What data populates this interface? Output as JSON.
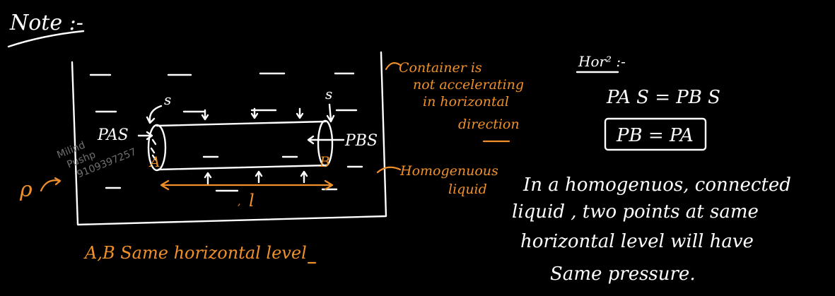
{
  "note_title": "Note :-",
  "liquid_symbol": "ρ",
  "cylinder": {
    "area_left": "s",
    "area_right": "s",
    "left_label": "A",
    "right_label": "B",
    "force_left": "PAS",
    "force_right": "PBS",
    "length": "l"
  },
  "container_note": [
    "Container is",
    "not accelerating",
    "in horizontal",
    "direction"
  ],
  "liquid_note": [
    "Homogenuous",
    "liquid"
  ],
  "bottom_caption": "A,B Same horizontal level",
  "hor_heading": "Hor² :-",
  "equation_1": "PA S = PB S",
  "equation_2": "PB = PA",
  "statement": [
    "In a homogenuos, connected",
    "liquid , two points at same",
    "horizontal level will have",
    "Same pressure."
  ],
  "watermark": [
    "Milind",
    "Pushp",
    "9109397257"
  ],
  "colors": {
    "background": "#000000",
    "white_ink": "#ffffff",
    "orange_ink": "#f0902a"
  }
}
